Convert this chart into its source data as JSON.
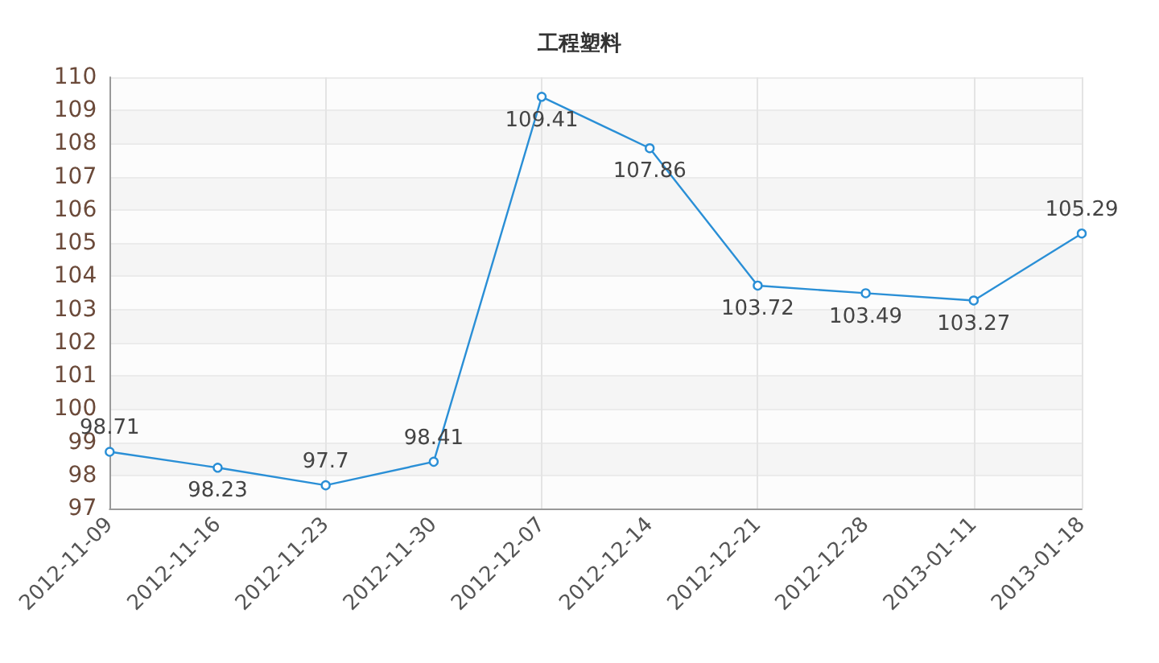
{
  "chart_data": {
    "type": "line",
    "title": "工程塑料",
    "categories": [
      "2012-11-09",
      "2012-11-16",
      "2012-11-23",
      "2012-11-30",
      "2012-12-07",
      "2012-12-14",
      "2012-12-21",
      "2012-12-28",
      "2013-01-11",
      "2013-01-18"
    ],
    "values": [
      98.71,
      98.23,
      97.7,
      98.41,
      109.41,
      107.86,
      103.72,
      103.49,
      103.27,
      105.29
    ],
    "color": "#2a8fd6",
    "ylim": [
      97,
      110
    ],
    "yticks": [
      97,
      98,
      99,
      100,
      101,
      102,
      103,
      104,
      105,
      106,
      107,
      108,
      109,
      110
    ],
    "grid": true,
    "data_labels": true,
    "marker": "circle",
    "line_style": "solid"
  }
}
